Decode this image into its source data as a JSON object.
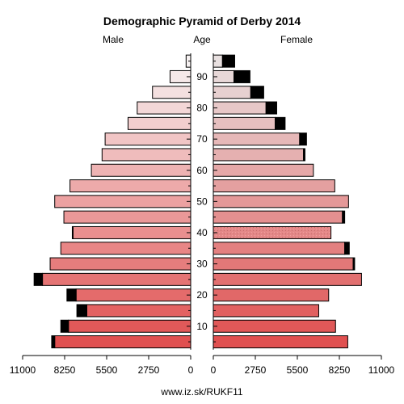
{
  "chart_data": {
    "type": "population_pyramid",
    "title": "Demographic Pyramid of Derby 2014",
    "left_label": "Male",
    "center_label": "Age",
    "right_label": "Female",
    "footer": "www.iz.sk/RUKF11",
    "xlim": [
      0,
      11000
    ],
    "x_ticks_left": [
      "11000",
      "8250",
      "5500",
      "2750",
      "0"
    ],
    "x_ticks_right": [
      "0",
      "2750",
      "5500",
      "8250",
      "11000"
    ],
    "x_tick_values": [
      11000,
      8250,
      5500,
      2750,
      0
    ],
    "x_tick_values_right": [
      0,
      2750,
      5500,
      8250,
      11000
    ],
    "age_ticks": [
      "10",
      "20",
      "30",
      "40",
      "50",
      "60",
      "70",
      "80",
      "90"
    ],
    "age_tick_values": [
      10,
      20,
      30,
      40,
      50,
      60,
      70,
      80,
      90
    ],
    "age_groups": [
      "0-4",
      "5-9",
      "10-14",
      "15-19",
      "20-24",
      "25-29",
      "30-34",
      "35-39",
      "40-44",
      "45-49",
      "50-54",
      "55-59",
      "60-64",
      "65-69",
      "70-74",
      "75-79",
      "80-84",
      "85-89",
      "90+"
    ],
    "age_group_midpoints": [
      2,
      7,
      12,
      17,
      22,
      27,
      32,
      37,
      42,
      47,
      52,
      57,
      62,
      67,
      72,
      77,
      82,
      87,
      92
    ],
    "male": [
      8900,
      8000,
      6800,
      7500,
      9700,
      9200,
      8500,
      7700,
      8300,
      8900,
      7900,
      6500,
      5800,
      5600,
      4100,
      3500,
      2500,
      1350,
      300
    ],
    "male_excess": [
      200,
      500,
      650,
      600,
      550,
      0,
      0,
      50,
      0,
      0,
      0,
      0,
      0,
      0,
      0,
      0,
      0,
      0,
      0
    ],
    "female": [
      8800,
      8000,
      6900,
      7550,
      9700,
      9150,
      8600,
      7700,
      8450,
      8850,
      7950,
      6550,
      5900,
      5650,
      4050,
      3450,
      2450,
      1350,
      600
    ],
    "female_excess": [
      0,
      0,
      0,
      0,
      0,
      100,
      300,
      0,
      150,
      0,
      0,
      0,
      100,
      450,
      650,
      700,
      850,
      1050,
      800
    ],
    "colors": {
      "excess": "#000000",
      "outline": "#000000",
      "bottom": "#e05050",
      "top": "#f7f2f2",
      "female_top": "#e8e0e0",
      "female_textured": [
        "35-39"
      ]
    }
  }
}
